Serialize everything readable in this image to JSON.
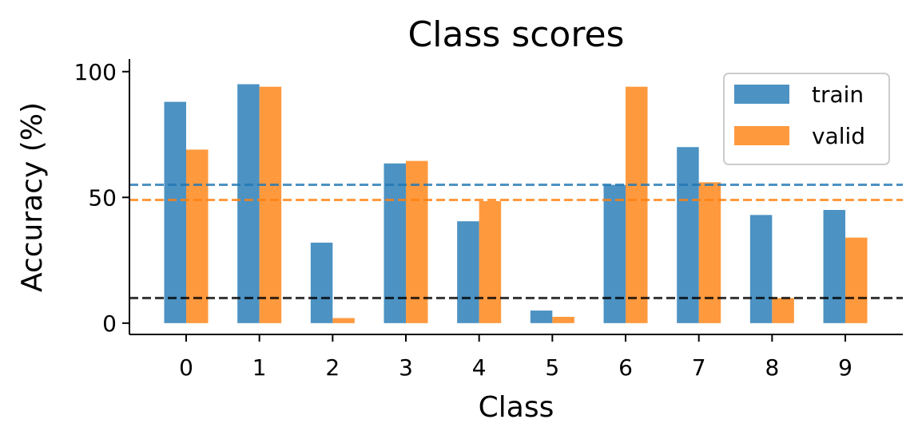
{
  "chart_data": {
    "type": "bar",
    "title": "Class scores",
    "xlabel": "Class",
    "ylabel": "Accuracy (%)",
    "categories": [
      "0",
      "1",
      "2",
      "3",
      "4",
      "5",
      "6",
      "7",
      "8",
      "9"
    ],
    "series": [
      {
        "name": "train",
        "color": "#1f77b4",
        "values": [
          88,
          95,
          32,
          63.5,
          40.5,
          5,
          55,
          70,
          43,
          45
        ]
      },
      {
        "name": "valid",
        "color": "#ff7f0e",
        "values": [
          69,
          94,
          2,
          64.5,
          48.5,
          2.5,
          94,
          56,
          10,
          34
        ]
      }
    ],
    "reference_lines": [
      {
        "value": 55,
        "color": "#1f77b4",
        "style": "dashed"
      },
      {
        "value": 49,
        "color": "#ff7f0e",
        "style": "dashed"
      },
      {
        "value": 10,
        "color": "#000000",
        "style": "dashed"
      }
    ],
    "yticks": [
      0,
      50,
      100
    ],
    "ylim": [
      -4.5,
      105
    ],
    "grid": false,
    "legend_position": "top-right"
  }
}
